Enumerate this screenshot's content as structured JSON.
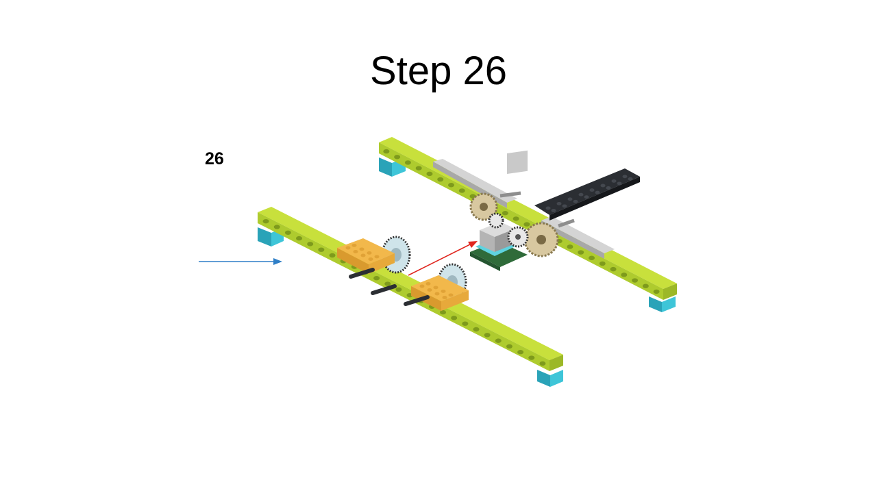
{
  "slide": {
    "title": "Step 26",
    "step_number": "26"
  },
  "illustration": {
    "subject": "lego-build-step",
    "colors": {
      "lime": "#c8e03c",
      "lime_dark": "#9cb827",
      "lime_side": "#aecb2e",
      "cyan": "#3ec5d8",
      "cyan_dark": "#2aa3b8",
      "orange": "#f2b84b",
      "orange_dark": "#d99a2e",
      "grey": "#c9c9c9",
      "grey_dark": "#8e8e8e",
      "black": "#2b2e33",
      "gear_tan": "#d8c8a0",
      "arrow_red": "#e0271f",
      "arrow_blue": "#2f7fc7"
    }
  }
}
